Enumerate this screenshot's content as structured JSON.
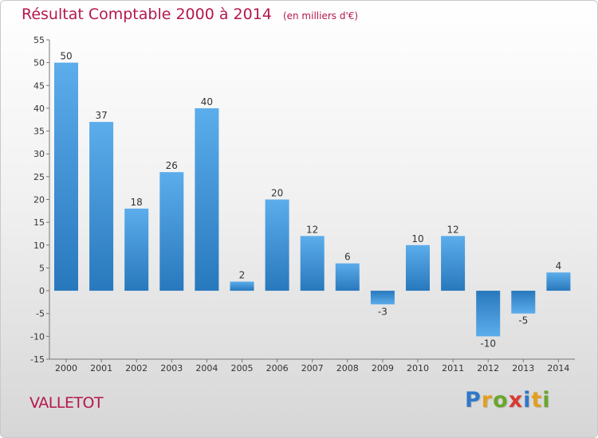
{
  "title": "Résultat Comptable 2000 à 2014",
  "unit_note": "(en milliers d'€)",
  "commune": "VALLETOT",
  "brand": [
    "P",
    "r",
    "o",
    "x",
    "i",
    "t",
    "i"
  ],
  "colors": {
    "bar": "#3f92d5",
    "accent": "#b5174e"
  },
  "chart_data": {
    "type": "bar",
    "title": "Résultat Comptable 2000 à 2014",
    "subtitle": "(en milliers d'€)",
    "xlabel": "",
    "ylabel": "",
    "categories": [
      "2000",
      "2001",
      "2002",
      "2003",
      "2004",
      "2005",
      "2006",
      "2007",
      "2008",
      "2009",
      "2010",
      "2011",
      "2012",
      "2013",
      "2014"
    ],
    "values": [
      50,
      37,
      18,
      26,
      40,
      2,
      20,
      12,
      6,
      -3,
      10,
      12,
      -10,
      -5,
      4
    ],
    "ylim": [
      -15,
      55
    ],
    "yticks": [
      -15,
      -10,
      -5,
      0,
      5,
      10,
      15,
      20,
      25,
      30,
      35,
      40,
      45,
      50,
      55
    ],
    "ytick_labels": [
      "-15",
      "-10",
      "-5",
      "0",
      "5",
      "10",
      "15",
      "20",
      "25",
      "30",
      "35",
      "40",
      "45",
      "50",
      "55"
    ],
    "data_labels": [
      "50",
      "37",
      "18",
      "26",
      "40",
      "2",
      "20",
      "12",
      "6",
      "-3",
      "10",
      "12",
      "-10",
      "-5",
      "4"
    ],
    "grid": false,
    "legend": "none"
  }
}
